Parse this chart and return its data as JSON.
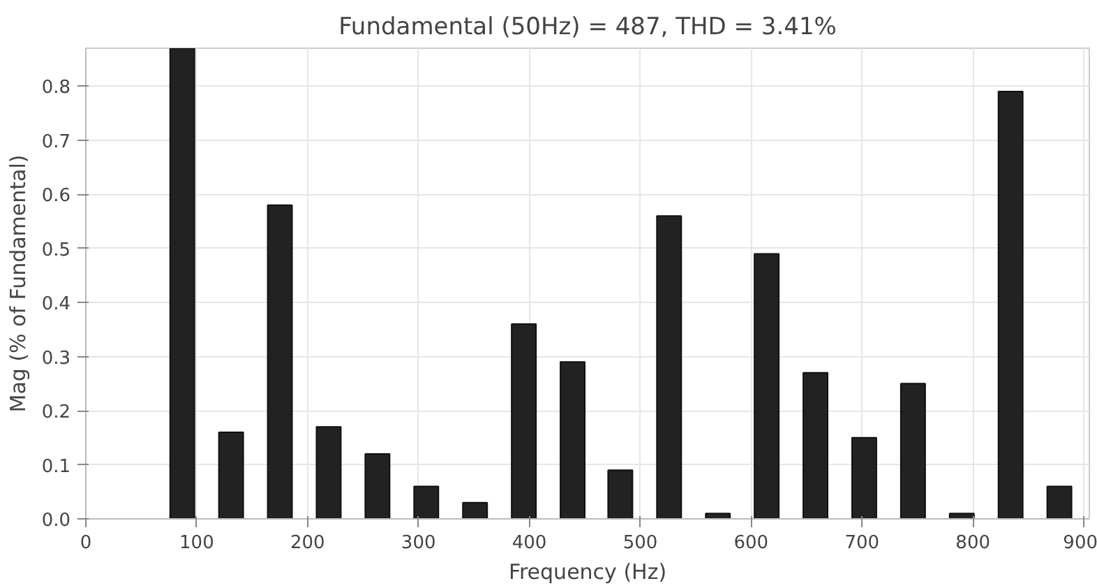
{
  "chart_data": {
    "type": "bar",
    "title": "Fundamental (50Hz) = 487, THD = 3.41%",
    "xlabel": "Frequency (Hz)",
    "ylabel": "Mag (% of Fundamental)",
    "x": [
      87,
      131,
      175,
      219,
      263,
      307,
      351,
      395,
      439,
      482,
      526,
      570,
      614,
      658,
      702,
      746,
      790,
      834,
      878
    ],
    "values": [
      0.87,
      0.16,
      0.58,
      0.17,
      0.12,
      0.06,
      0.03,
      0.36,
      0.29,
      0.09,
      0.56,
      0.01,
      0.49,
      0.27,
      0.15,
      0.25,
      0.01,
      0.79,
      0.06
    ],
    "color": "#222222",
    "xlim": [
      0,
      905
    ],
    "xticks": [
      0,
      100,
      200,
      300,
      400,
      500,
      600,
      700,
      800,
      900
    ],
    "ylim": [
      0,
      0.87
    ],
    "yticks": [
      {
        "value": 0.0,
        "label": "0.0"
      },
      0.1,
      0.2,
      0.3,
      0.4,
      0.5,
      0.6,
      0.7,
      0.8
    ],
    "grid": true
  }
}
